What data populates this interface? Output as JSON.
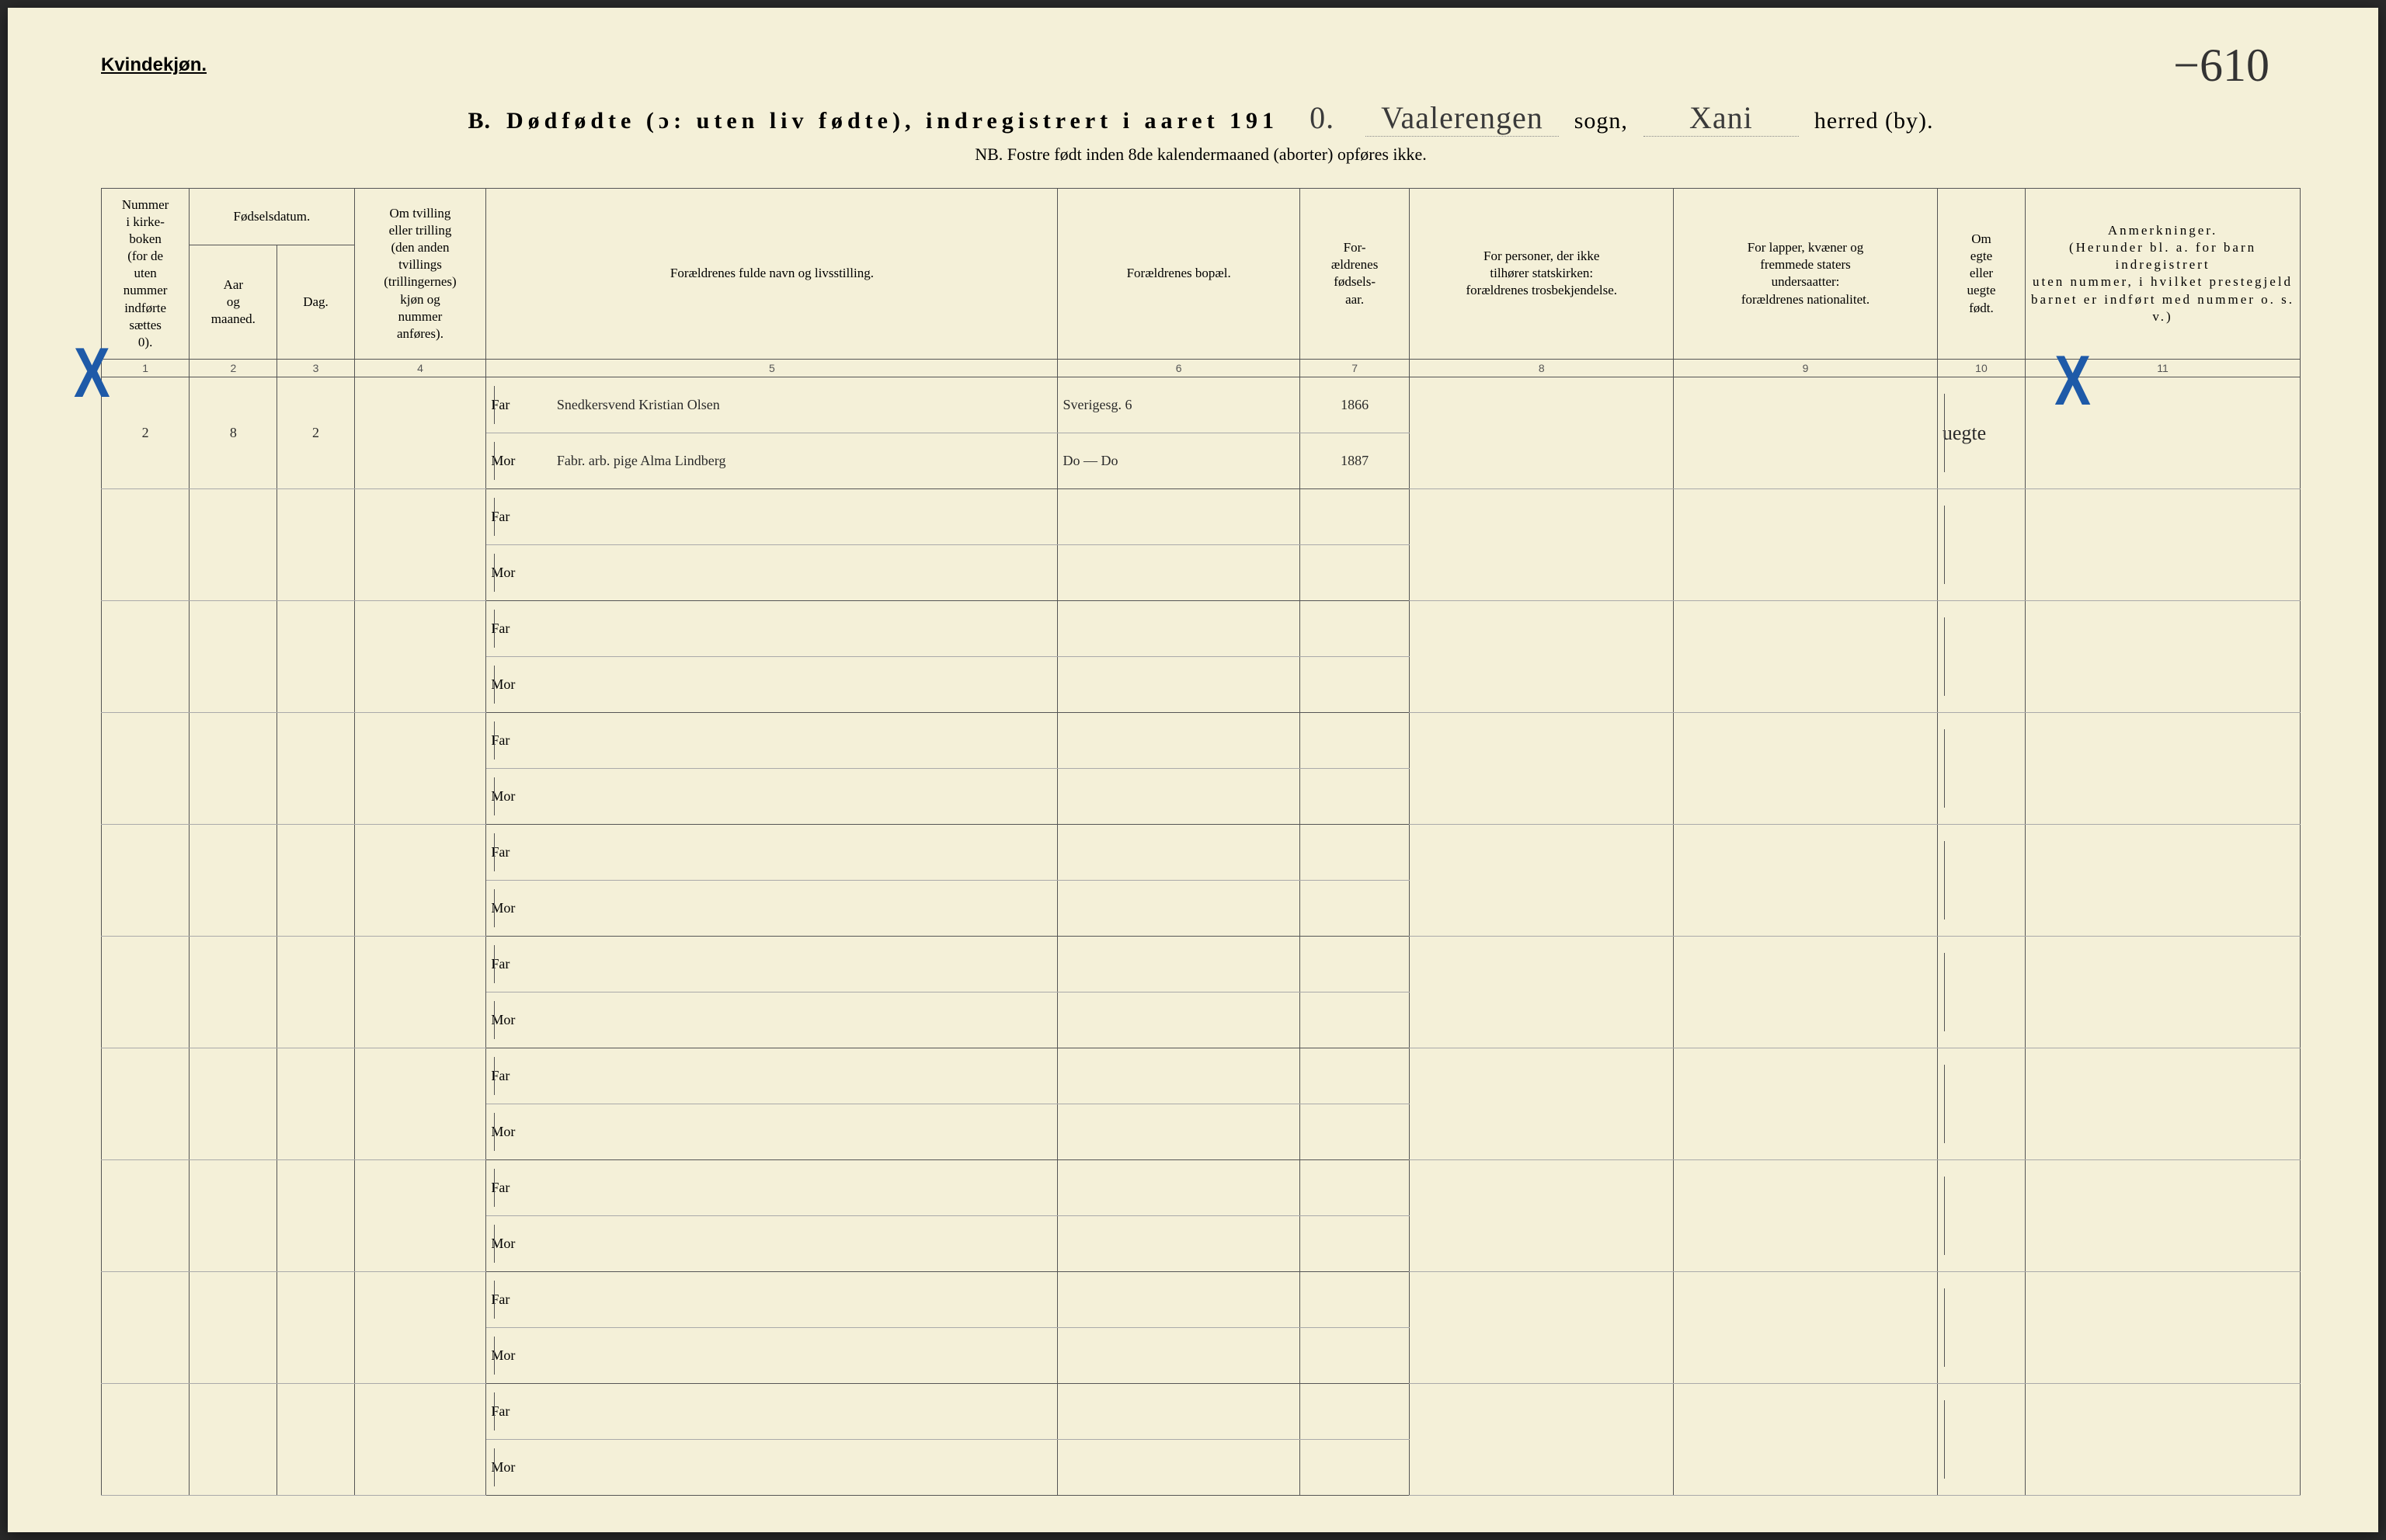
{
  "page": {
    "gender_label": "Kvindekjøn.",
    "page_number_hand": "−610",
    "title_prefix": "B.",
    "title_main": "Dødfødte (ɔ: uten liv fødte), indregistrert i aaret 191",
    "title_year_hand": "0.",
    "sogn_hand": "Vaalerengen",
    "sogn_label": "sogn,",
    "herred_hand": "Xani",
    "herred_label": "herred (by).",
    "subtitle": "NB. Fostre født inden 8de kalendermaaned (aborter) opføres ikke."
  },
  "columns": {
    "c1": "Nummer\ni kirke-\nboken\n(for de\nuten\nnummer\nindførte\nsættes\n0).",
    "c2_group": "Fødselsdatum.",
    "c2": "Aar\nog\nmaaned.",
    "c3": "Dag.",
    "c4": "Om tvilling\neller trilling\n(den anden\ntvillings\n(trillingernes)\nkjøn og\nnummer\nanføres).",
    "c5": "Forældrenes fulde navn og livsstilling.",
    "c6": "Forældrenes bopæl.",
    "c7": "For-\nældrenes\nfødsels-\naar.",
    "c8": "For personer, der ikke\ntilhører statskirken:\nforældrenes trosbekjendelse.",
    "c9": "For lapper, kvæner og\nfremmede staters\nundersaatter:\nforældrenes nationalitet.",
    "c10": "Om\negte\neller\nuegte\nfødt.",
    "c11": "Anmerkninger.\n(Herunder bl. a. for barn indregistrert\nuten nummer, i hvilket prestegjeld\nbarnet er indført med nummer o. s. v.)",
    "far": "Far",
    "mor": "Mor",
    "nums": [
      "1",
      "2",
      "3",
      "4",
      "5",
      "6",
      "7",
      "8",
      "9",
      "10",
      "11"
    ]
  },
  "widths": {
    "c1": "4%",
    "c2": "4%",
    "c3": "3.5%",
    "c4": "6%",
    "c5_label": "3%",
    "c5": "23%",
    "c6": "11%",
    "c7": "5%",
    "c8": "12%",
    "c9": "12%",
    "c10": "4%",
    "c11": "12.5%"
  },
  "entry": {
    "num": "2",
    "aar": "8",
    "dag": "2",
    "tvilling": "",
    "far_name": "Snedkersvend Kristian Olsen",
    "far_bopael": "Sverigesg. 6",
    "far_aar": "1866",
    "mor_name": "Fabr. arb. pige Alma Lindberg",
    "mor_bopael": "Do — Do",
    "mor_aar": "1887",
    "col10": "uegte"
  },
  "colors": {
    "paper": "#f4f0d8",
    "ink": "#2a2a2a",
    "blue_pencil": "#1e5aa8",
    "rule": "#555555"
  }
}
